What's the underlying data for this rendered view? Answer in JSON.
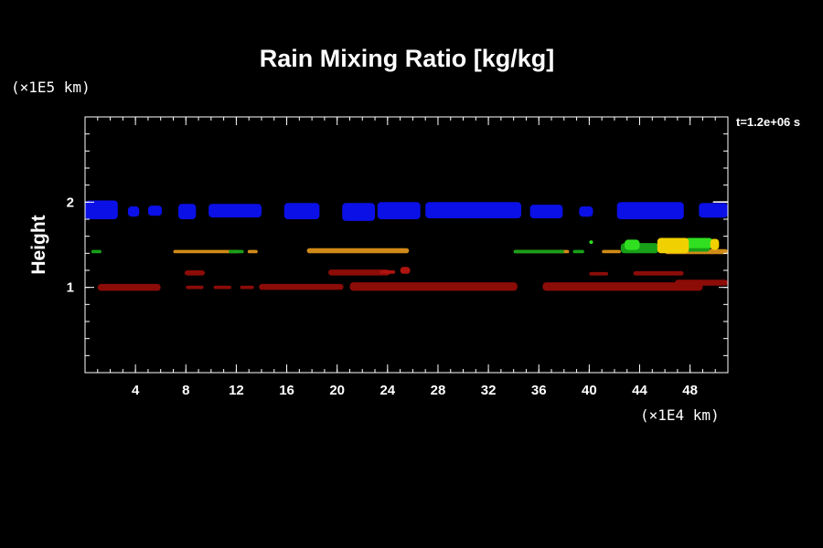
{
  "chart_data": {
    "type": "heatmap",
    "title": "Rain Mixing Ratio [kg/kg]",
    "xlabel": "",
    "ylabel": "Height",
    "x_unit": "(×1E4 km)",
    "y_unit": "(×1E5 km)",
    "time_label": "t=1.2e+06 s",
    "xlim": [
      0,
      51
    ],
    "ylim": [
      0,
      3
    ],
    "x_ticks": [
      4,
      8,
      12,
      16,
      20,
      24,
      28,
      32,
      36,
      40,
      44,
      48
    ],
    "y_ticks": [
      1,
      2
    ],
    "x_minor_step": 1,
    "y_minor_step": 0.2,
    "grid": false,
    "colors": {
      "blue": "#0a10e6",
      "dark_red": "#8c0c08",
      "red": "#b01410",
      "orange": "#d08a18",
      "green": "#18a018",
      "bright_green": "#30e020",
      "yellow": "#f0d000",
      "white": "#ffffff"
    },
    "features": [
      {
        "level": "upper",
        "color": "blue",
        "segments": [
          [
            0,
            2.6,
            1.8,
            2.02
          ],
          [
            3.4,
            4.3,
            1.83,
            1.95
          ],
          [
            5.0,
            6.1,
            1.84,
            1.96
          ],
          [
            7.4,
            8.8,
            1.8,
            1.98
          ],
          [
            9.8,
            14.0,
            1.82,
            1.98
          ],
          [
            15.8,
            18.6,
            1.8,
            1.99
          ],
          [
            20.4,
            23.0,
            1.78,
            1.99
          ],
          [
            23.2,
            26.6,
            1.8,
            2.0
          ],
          [
            27.0,
            34.6,
            1.81,
            2.0
          ],
          [
            35.3,
            37.9,
            1.81,
            1.97
          ],
          [
            39.2,
            40.3,
            1.83,
            1.95
          ],
          [
            42.2,
            47.5,
            1.8,
            2.0
          ],
          [
            48.7,
            51,
            1.82,
            1.99
          ]
        ]
      },
      {
        "level": "mid",
        "color": "orange",
        "segments": [
          [
            7.0,
            12.2,
            1.4,
            1.44
          ],
          [
            12.9,
            13.7,
            1.4,
            1.44
          ],
          [
            17.6,
            25.7,
            1.4,
            1.46
          ],
          [
            34.0,
            38.4,
            1.4,
            1.44
          ],
          [
            41.0,
            42.5,
            1.4,
            1.44
          ],
          [
            46.0,
            51,
            1.39,
            1.45
          ]
        ]
      },
      {
        "level": "mid",
        "color": "green",
        "segments": [
          [
            0.5,
            1.3,
            1.4,
            1.44
          ],
          [
            11.4,
            12.6,
            1.4,
            1.44
          ],
          [
            34.0,
            38.0,
            1.4,
            1.44
          ],
          [
            38.7,
            39.6,
            1.4,
            1.44
          ],
          [
            42.5,
            45.5,
            1.4,
            1.52
          ],
          [
            47.0,
            49.6,
            1.42,
            1.56
          ]
        ]
      },
      {
        "level": "mid",
        "color": "bright_green",
        "segments": [
          [
            42.8,
            44.0,
            1.44,
            1.56
          ],
          [
            47.6,
            49.8,
            1.46,
            1.58
          ],
          [
            40.0,
            40.3,
            1.51,
            1.55
          ]
        ]
      },
      {
        "level": "mid",
        "color": "yellow",
        "segments": [
          [
            45.4,
            47.9,
            1.4,
            1.58
          ],
          [
            49.6,
            50.3,
            1.44,
            1.57
          ]
        ]
      },
      {
        "level": "lower",
        "color": "dark_red",
        "segments": [
          [
            1.0,
            6.0,
            0.96,
            1.04
          ],
          [
            7.9,
            9.5,
            1.14,
            1.2
          ],
          [
            8.0,
            9.4,
            0.98,
            1.02
          ],
          [
            10.2,
            11.6,
            0.98,
            1.02
          ],
          [
            12.3,
            13.4,
            0.98,
            1.02
          ],
          [
            13.8,
            20.5,
            0.97,
            1.04
          ],
          [
            19.3,
            24.2,
            1.14,
            1.21
          ],
          [
            21.0,
            34.3,
            0.96,
            1.06
          ],
          [
            36.3,
            49.0,
            0.96,
            1.06
          ],
          [
            40.0,
            41.5,
            1.14,
            1.18
          ],
          [
            43.5,
            47.5,
            1.14,
            1.19
          ],
          [
            46.8,
            51,
            1.02,
            1.09
          ]
        ]
      },
      {
        "level": "lower",
        "color": "red",
        "segments": [
          [
            25.0,
            25.8,
            1.16,
            1.24
          ],
          [
            23.4,
            24.6,
            1.16,
            1.2
          ]
        ]
      },
      {
        "level": "upper",
        "color": "white",
        "segments": [
          [
            49.8,
            51,
            2.0,
            2.01
          ]
        ]
      }
    ]
  }
}
